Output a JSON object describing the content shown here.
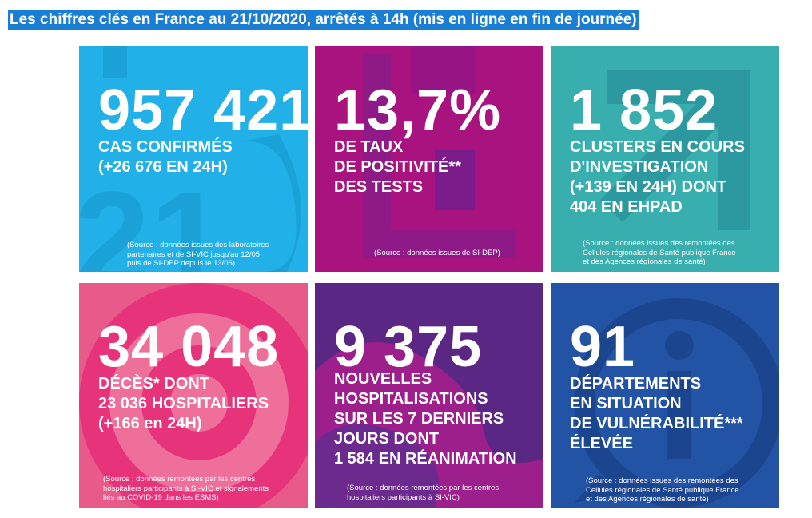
{
  "headline": "Les chiffres clés en France au 21/10/2020, arrêtés à 14h (mis en ligne en fin de journée)",
  "colors": {
    "headline_bg": "#1a7fd4",
    "tile_cases": "#21b0e7",
    "tile_positivity": "#a8137f",
    "tile_clusters": "#38aeae",
    "tile_deaths": "#e75a8a",
    "tile_hospital": "#5a2784",
    "tile_departments": "#2353a5"
  },
  "tiles": [
    {
      "id": "cases",
      "number": "957 421",
      "label_lines": [
        "CAS CONFIRMÉS",
        "(+26 676 EN 24H)"
      ],
      "source_lines": [
        "(Source : données issues des laboratoires",
        "partenaires et de SI-VIC jusqu'au 12/05",
        "puis de SI-DEP depuis le 13/05)"
      ],
      "bg_icon": "big-numbers-icon"
    },
    {
      "id": "positivity",
      "number": "13,7%",
      "label_lines": [
        "DE TAUX",
        "DE POSITIVITÉ**",
        "DES TESTS"
      ],
      "source_lines": [
        "(Source : données issues de SI-DEP)"
      ],
      "bg_icon": "up-arrow-icon"
    },
    {
      "id": "clusters",
      "number": "1 852",
      "label_lines": [
        "CLUSTERS EN COURS",
        "D'INVESTIGATION",
        "(+139 EN 24H) DONT",
        "404 EN EHPAD"
      ],
      "source_lines": [
        "(Source : données issues des remontées des",
        "Cellules régionales de Santé publique France",
        "et des Agences régionales de santé)"
      ],
      "bg_icon": "arrow-icon"
    },
    {
      "id": "deaths",
      "number": "34 048",
      "label_lines": [
        "DÉCÈS* DONT",
        "23 036 HOSPITALIERS",
        "(+166 en 24H)"
      ],
      "source_lines": [
        "(Source : données remontées par les centres",
        "hospitaliers participants à SI-VIC et signalements",
        "liés au COVID-19 dans les ESMS)"
      ],
      "bg_icon": "target-icon"
    },
    {
      "id": "hospital",
      "number": "9 375",
      "label_lines": [
        "NOUVELLES",
        "HOSPITALISATIONS",
        "SUR LES 7 DERNIERS",
        "JOURS DONT",
        "1 584 EN RÉANIMATION"
      ],
      "source_lines": [
        "(Source : données remontées par les centres",
        "hospitaliers participants à SI-VIC)"
      ],
      "bg_icon": "wave-icon"
    },
    {
      "id": "departments",
      "number": "91",
      "label_lines": [
        "DÉPARTEMENTS",
        "EN SITUATION",
        "DE VULNÉRABILITÉ***",
        "ÉLEVÉE"
      ],
      "source_lines": [
        "(Source : données issues des remontées des",
        "Cellules régionales de Santé publique France",
        "et des Agences régionales de santé)"
      ],
      "bg_icon": "info-bubble-icon"
    }
  ]
}
